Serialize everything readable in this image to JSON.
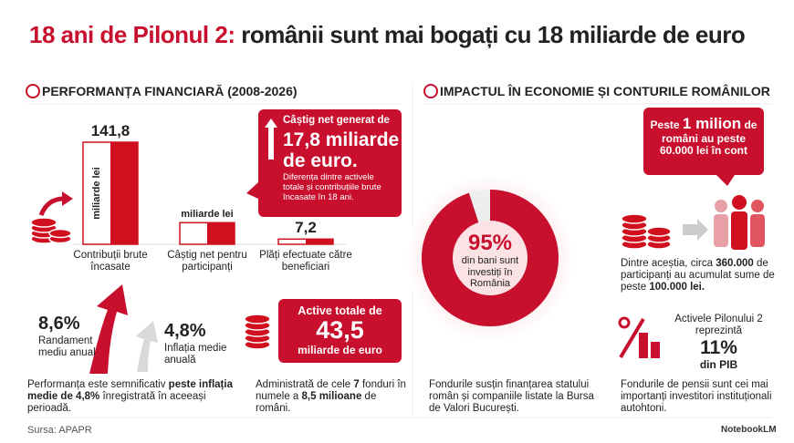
{
  "title_lead": "18 ani de Pilonul 2:",
  "title_rest": " românii sunt mai bogați cu 18 miliarde de euro",
  "left": {
    "header": "PERFORMANȚA FINANCIARĂ (2008-2026)",
    "callout": {
      "line1": "Câștig net generat de",
      "line2": "17,8 miliarde",
      "line3": "de euro.",
      "note": "Diferența dintre activele totale și contribuțiile brute încasate în 18 ani."
    },
    "return": {
      "value": "8,6%",
      "label": "Randament mediu anual"
    },
    "inflation": {
      "value": "4,8%",
      "label": "Inflația medie anuală"
    },
    "note": [
      "Performanța este semnificativ ",
      "peste inflația medie de 4,8%",
      " înregistrată în aceeași perioadă."
    ],
    "assets": {
      "line1": "Active totale de",
      "value": "43,5",
      "line3": "miliarde de euro"
    },
    "assets_note": [
      "Administrată de cele ",
      "7",
      " fonduri în numele a ",
      "8,5 milioane",
      " de români."
    ]
  },
  "right": {
    "header": "IMPACTUL ÎN ECONOMIE ȘI CONTURILE ROMÂNILOR",
    "callout": [
      "Peste ",
      "1 milion",
      " de români au peste 60.000 lei în cont"
    ],
    "savers": [
      "Dintre aceștia, circa ",
      "360.000",
      " de participanți au acumulat sume de peste ",
      "100.000 lei."
    ],
    "gdp": {
      "line1": "Activele Pilonului 2 reprezintă",
      "value": "11%",
      "line3": "din PIB"
    },
    "funding_note": "Fondurile susțin finanțarea statului român și companiile listate la Bursa de Valori București.",
    "investors_note": "Fondurile de pensii sunt cei mai importanți investitori instituționali autohtoni."
  },
  "chart_data": [
    {
      "type": "bar",
      "categories": [
        "Contribuții brute încasate",
        "Câștig net pentru participanți",
        "Plăți efectuate către beneficiari"
      ],
      "values": [
        141.8,
        30,
        7.2
      ],
      "value_labels": [
        "141,8",
        null,
        "7,2"
      ],
      "unit_labels": [
        "miliarde lei",
        "miliarde lei",
        null
      ],
      "color": "#d0101e"
    },
    {
      "type": "donut",
      "values": [
        95
      ],
      "value_labels": [
        "95%"
      ],
      "labels": [
        "din bani sunt investiți în România"
      ],
      "color": "#c8102e"
    }
  ],
  "source": "Sursa: APAPR",
  "brand": "NotebookLM"
}
